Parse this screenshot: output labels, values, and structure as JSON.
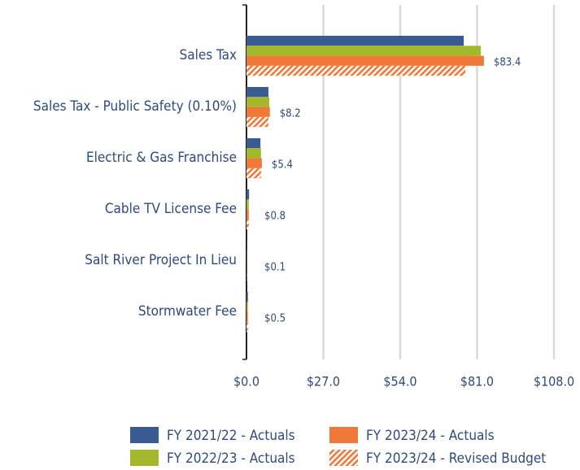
{
  "chart_data": {
    "type": "hbar",
    "categories": [
      "Sales Tax",
      "Sales Tax - Public Safety (0.10%)",
      "Electric & Gas Franchise",
      "Cable TV License Fee",
      "Salt River Project In Lieu",
      "Stormwater Fee"
    ],
    "series": [
      {
        "name": "FY 2021/22 - Actuals",
        "color": "#3a5a92",
        "values": [
          76.3,
          7.7,
          4.9,
          0.9,
          0.1,
          0.5
        ]
      },
      {
        "name": "FY 2022/23 - Actuals",
        "color": "#a3b92b",
        "values": [
          82.3,
          8.0,
          5.1,
          0.8,
          0.1,
          0.5
        ]
      },
      {
        "name": "FY 2023/24 - Actuals",
        "color": "#f0793a",
        "values": [
          83.4,
          8.2,
          5.4,
          0.8,
          0.1,
          0.5
        ],
        "value_labels": [
          "$83.4",
          "$8.2",
          "$5.4",
          "$0.8",
          "$0.1",
          "$0.5"
        ]
      },
      {
        "name": "FY 2023/24 - Revised Budget",
        "color": "#f0793a",
        "hatch": true,
        "values": [
          76.9,
          7.7,
          5.1,
          0.8,
          0.1,
          0.5
        ]
      }
    ],
    "xlim": [
      0,
      108
    ],
    "xticks": [
      {
        "value": 0,
        "label": "$0.0"
      },
      {
        "value": 27,
        "label": "$27.0"
      },
      {
        "value": 54,
        "label": "$54.0"
      },
      {
        "value": 81,
        "label": "$81.0"
      },
      {
        "value": 108,
        "label": "$108.0"
      }
    ],
    "grid": true,
    "legend": "bottom"
  }
}
